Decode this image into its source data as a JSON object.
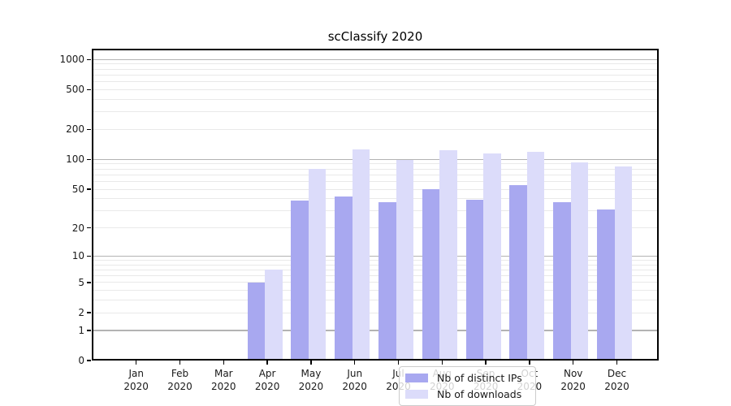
{
  "chart_data": {
    "type": "bar",
    "title": "scClassify 2020",
    "categories": [
      "Jan 2020",
      "Feb 2020",
      "Mar 2020",
      "Apr 2020",
      "May 2020",
      "Jun 2020",
      "Jul 2020",
      "Aug 2020",
      "Sep 2020",
      "Oct 2020",
      "Nov 2020",
      "Dec 2020"
    ],
    "series": [
      {
        "name": "Nb of distinct IPs",
        "values": [
          0,
          0,
          0,
          5,
          38,
          42,
          37,
          50,
          39,
          55,
          37,
          31
        ],
        "color": "#a8a8f0"
      },
      {
        "name": "Nb of downloads",
        "values": [
          0,
          0,
          0,
          7,
          80,
          126,
          98,
          124,
          114,
          120,
          94,
          85
        ],
        "color": "#dcdcfa"
      }
    ],
    "xlabel": "",
    "ylabel": "",
    "y_scale": "log10(value+1)",
    "y_ticks": [
      0,
      1,
      2,
      5,
      10,
      20,
      50,
      100,
      200,
      500,
      1000
    ],
    "ylim": [
      0,
      1282
    ],
    "grid": true,
    "legend_position": "inside-bottom-center"
  },
  "style": {
    "major_grid_color": "#b3b3b3",
    "minor_grid_color": "#e9e9e9",
    "axis_color": "#000000",
    "text_color": "#1a1a1a",
    "legend_border_color": "#cccccc",
    "legend_bg": "rgba(255,255,255,0.8)"
  }
}
